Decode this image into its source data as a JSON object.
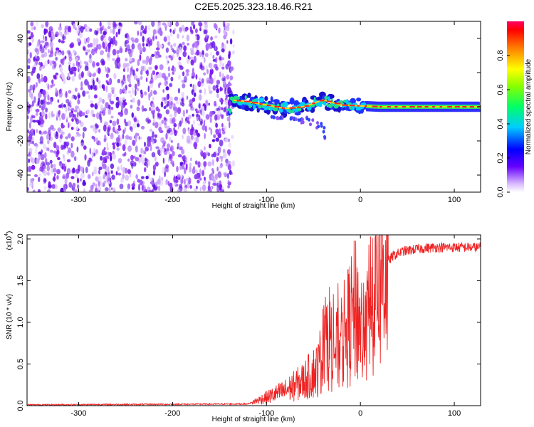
{
  "title": "C2E5.2025.323.18.46.R21",
  "colors": {
    "line": "#ee2222",
    "axis": "#000000"
  },
  "chart_data": [
    {
      "type": "heatmap",
      "name": "spectrogram",
      "xlabel": "Height of straight line (km)",
      "ylabel": "Frequency (Hz)",
      "xlim": [
        -355,
        128
      ],
      "ylim": [
        -50,
        50
      ],
      "xticks": [
        -300,
        -200,
        -100,
        0,
        100
      ],
      "yticks": [
        -40,
        -20,
        0,
        20,
        40
      ],
      "noise_region": {
        "x_from": -355,
        "x_to": -135
      },
      "signal_track": [
        {
          "x": -138,
          "y": 4
        },
        {
          "x": -120,
          "y": 3
        },
        {
          "x": -100,
          "y": 1
        },
        {
          "x": -80,
          "y": -1
        },
        {
          "x": -60,
          "y": 0
        },
        {
          "x": -40,
          "y": 4
        },
        {
          "x": -20,
          "y": 1
        },
        {
          "x": 0,
          "y": 0.5
        },
        {
          "x": 20,
          "y": 0
        },
        {
          "x": 60,
          "y": 0
        },
        {
          "x": 128,
          "y": 0
        }
      ],
      "colorbar": {
        "label": "Normalized spectral amplitude",
        "ticks": [
          0.0,
          0.2,
          0.4,
          0.6,
          0.8
        ],
        "tick_labels": [
          "0.0",
          "0.2",
          "0.4",
          "0.6",
          "0.8"
        ],
        "range": [
          0,
          1
        ]
      }
    },
    {
      "type": "line",
      "name": "snr",
      "xlabel": "Height of straight line (km)",
      "ylabel": "SNR (10 * v/v)",
      "scale_label": "(x10",
      "scale_exponent": "4",
      "scale_suffix": ")",
      "xlim": [
        -355,
        128
      ],
      "ylim": [
        0,
        2.05
      ],
      "xticks": [
        -300,
        -200,
        -100,
        0,
        100
      ],
      "yticks": [
        0.0,
        0.5,
        1.0,
        1.5,
        2.0
      ],
      "ytick_labels": [
        "0.0",
        "0.5",
        "1.0",
        "1.5",
        "2.0"
      ],
      "series": [
        {
          "name": "SNR",
          "x": [
            -355,
            -120,
            -100,
            -80,
            -60,
            -45,
            -35,
            -25,
            -15,
            -5,
            5,
            15,
            25,
            35,
            45,
            60,
            80,
            100,
            128
          ],
          "y": [
            0.01,
            0.02,
            0.1,
            0.18,
            0.3,
            0.45,
            0.9,
            0.65,
            0.9,
            1.15,
            0.8,
            1.55,
            1.68,
            1.8,
            1.85,
            1.88,
            1.9,
            1.9,
            1.9
          ]
        }
      ]
    }
  ]
}
